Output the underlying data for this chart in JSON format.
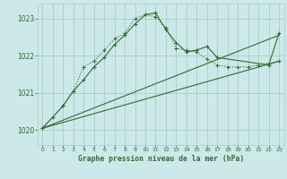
{
  "title": "Graphe pression niveau de la mer (hPa)",
  "bg_color": "#cce8e8",
  "grid_color": "#aacccc",
  "line_color": "#2d6e2d",
  "xlim": [
    -0.5,
    23.5
  ],
  "ylim": [
    1019.6,
    1023.4
  ],
  "yticks": [
    1020,
    1021,
    1022,
    1023
  ],
  "xticks": [
    0,
    1,
    2,
    3,
    4,
    5,
    6,
    7,
    8,
    9,
    10,
    11,
    12,
    13,
    14,
    15,
    16,
    17,
    18,
    19,
    20,
    21,
    22,
    23
  ],
  "series1_x": [
    0,
    1,
    2,
    3,
    4,
    5,
    6,
    7,
    8,
    9,
    10,
    11,
    12,
    13,
    14,
    15,
    16,
    17,
    18,
    19,
    20,
    21,
    22,
    23
  ],
  "series1_y": [
    1020.05,
    1020.35,
    1020.65,
    1021.05,
    1021.7,
    1021.85,
    1022.15,
    1022.45,
    1022.6,
    1023.0,
    1023.1,
    1023.05,
    1022.75,
    1022.2,
    1022.15,
    1022.1,
    1021.9,
    1021.75,
    1021.7,
    1021.7,
    1021.7,
    1021.75,
    1021.8,
    1021.85
  ],
  "series2_x": [
    0,
    2,
    3,
    4,
    5,
    6,
    7,
    8,
    9,
    10,
    11,
    12,
    13,
    14,
    15,
    16,
    17,
    22,
    23
  ],
  "series2_y": [
    1020.05,
    1020.65,
    1021.05,
    1021.35,
    1021.7,
    1021.95,
    1022.3,
    1022.55,
    1022.85,
    1023.1,
    1023.15,
    1022.7,
    1022.35,
    1022.1,
    1022.15,
    1022.25,
    1021.95,
    1021.75,
    1022.6
  ],
  "series3_x": [
    0,
    23
  ],
  "series3_y": [
    1020.05,
    1022.55
  ],
  "series4_x": [
    0,
    23
  ],
  "series4_y": [
    1020.05,
    1021.85
  ]
}
